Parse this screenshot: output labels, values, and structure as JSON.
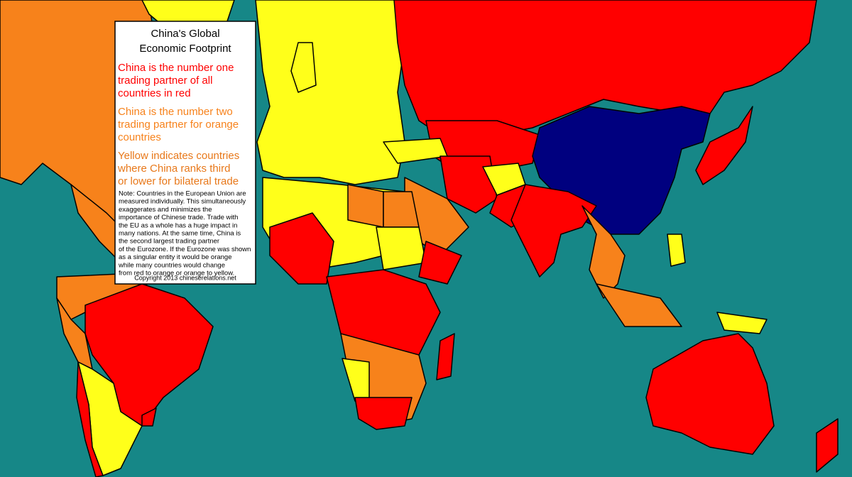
{
  "title": [
    "China's Global",
    "Economic Footprint"
  ],
  "legend": [
    {
      "color": "#ff0000",
      "lines": [
        "China is the number one",
        "trading partner of all",
        "countries in red"
      ]
    },
    {
      "color": "#f7821b",
      "lines": [
        "China is the number two",
        "trading partner for orange",
        "countries"
      ]
    },
    {
      "color": "#e8781a",
      "lines": [
        "Yellow indicates countries",
        "where China ranks third",
        "or lower for bilateral trade"
      ]
    }
  ],
  "note": [
    "Note: Countries in the European Union are",
    "measured individually. This simultaneously",
    "exaggerates and minimizes the",
    "importance of Chinese trade. Trade with",
    "the EU as a whole has a huge impact in",
    "many nations. At the same time, China is",
    "the second largest trading partner",
    "of the Eurozone. If the Eurozone was shown",
    "as a singular entity it would be orange",
    "while many countries would change",
    "from red to orange or orange to yellow."
  ],
  "copyright": "Copyright 2013 chineserelations.net"
}
